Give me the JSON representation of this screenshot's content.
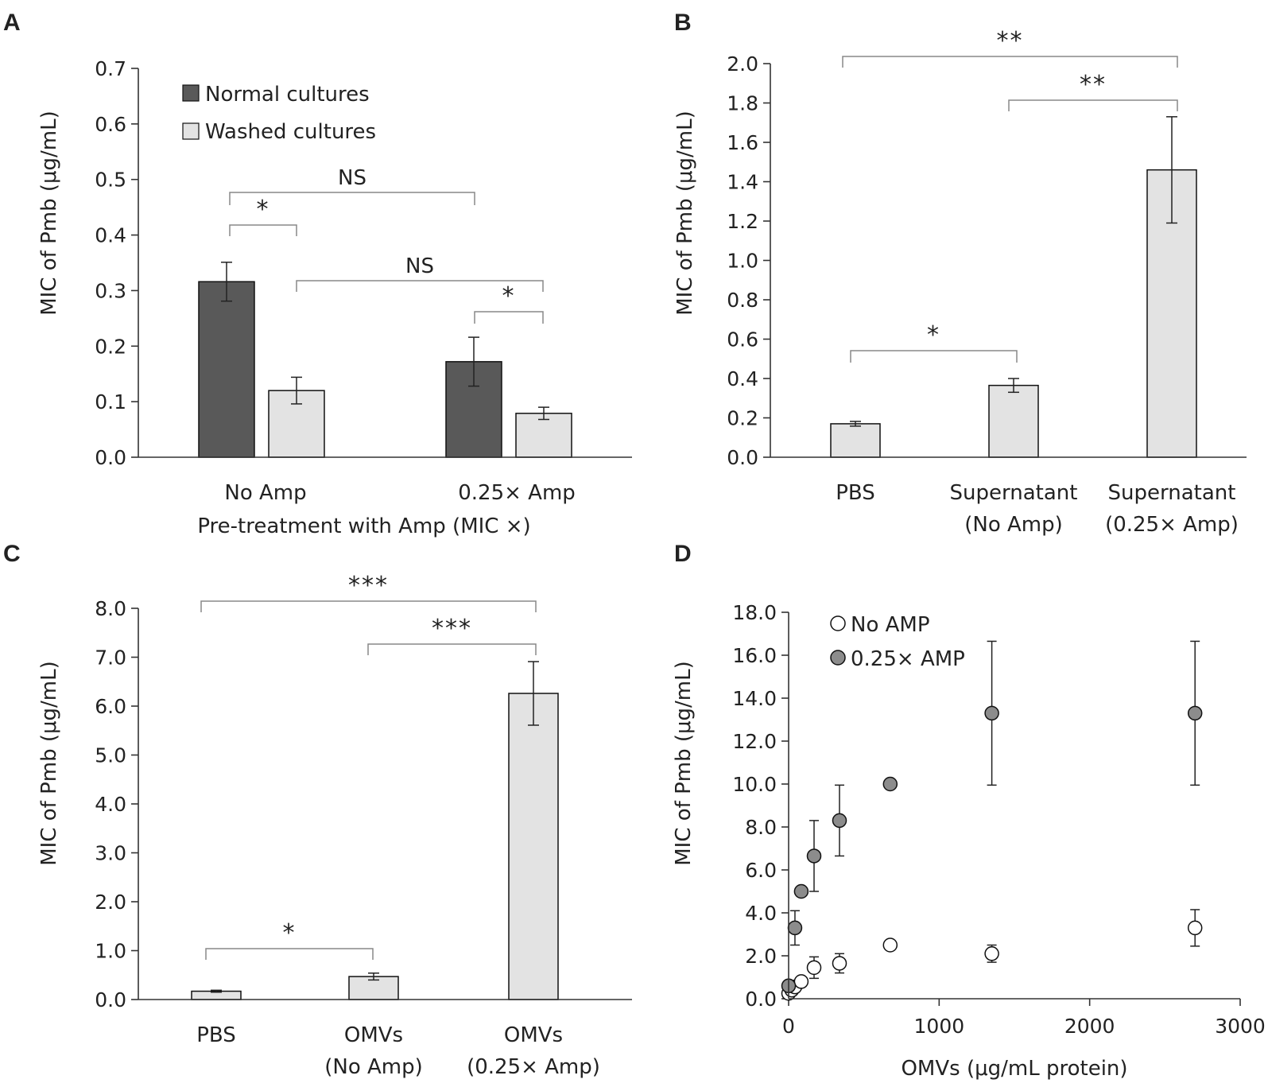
{
  "colors": {
    "dark_bar": "#595959",
    "light_bar": "#e3e3e3",
    "bar_edge": "#111111",
    "open_marker": "#ffffff",
    "filled_marker": "#8c8c8c"
  },
  "chart_data": [
    {
      "panel": "A",
      "type": "bar",
      "ylabel": "MIC of Pmb (μg/mL)",
      "xlabel": "Pre-treatment with Amp (MIC ×)",
      "ylim": [
        0,
        0.7
      ],
      "yticks": [
        "0.0",
        "0.1",
        "0.2",
        "0.3",
        "0.4",
        "0.5",
        "0.6",
        "0.7"
      ],
      "categories": [
        "No Amp",
        "0.25× Amp"
      ],
      "series": [
        {
          "name": "Normal cultures",
          "values": [
            0.316,
            0.172
          ],
          "errors": [
            0.035,
            0.044
          ]
        },
        {
          "name": "Washed cultures",
          "values": [
            0.12,
            0.079
          ],
          "errors": [
            0.024,
            0.011
          ]
        }
      ],
      "significance": [
        {
          "label": "NS",
          "between": [
            "No Amp / Normal cultures",
            "0.25× Amp / Normal cultures"
          ]
        },
        {
          "label": "*",
          "between": [
            "No Amp / Normal cultures",
            "No Amp / Washed cultures"
          ]
        },
        {
          "label": "NS",
          "between": [
            "No Amp / Washed cultures",
            "0.25× Amp / Washed cultures"
          ]
        },
        {
          "label": "*",
          "between": [
            "0.25× Amp / Normal cultures",
            "0.25× Amp / Washed cultures"
          ]
        }
      ]
    },
    {
      "panel": "B",
      "type": "bar",
      "ylabel": "MIC of Pmb (μg/mL)",
      "ylim": [
        0,
        2.0
      ],
      "yticks": [
        "0.0",
        "0.2",
        "0.4",
        "0.6",
        "0.8",
        "1.0",
        "1.2",
        "1.4",
        "1.6",
        "1.8",
        "2.0"
      ],
      "categories": [
        [
          "PBS"
        ],
        [
          "Supernatant",
          "(No Amp)"
        ],
        [
          "Supernatant",
          "(0.25× Amp)"
        ]
      ],
      "values": [
        0.17,
        0.365,
        1.46
      ],
      "errors": [
        0.012,
        0.035,
        0.27
      ],
      "significance": [
        {
          "label": "**",
          "between": [
            "PBS",
            "Supernatant (0.25× Amp)"
          ]
        },
        {
          "label": "**",
          "between": [
            "Supernatant (No Amp)",
            "Supernatant (0.25× Amp)"
          ]
        },
        {
          "label": "*",
          "between": [
            "PBS",
            "Supernatant (No Amp)"
          ]
        }
      ]
    },
    {
      "panel": "C",
      "type": "bar",
      "ylabel": "MIC of Pmb (μg/mL)",
      "ylim": [
        0,
        8.0
      ],
      "yticks": [
        "0.0",
        "1.0",
        "2.0",
        "3.0",
        "4.0",
        "5.0",
        "6.0",
        "7.0",
        "8.0"
      ],
      "categories": [
        [
          "PBS"
        ],
        [
          "OMVs",
          "(No Amp)"
        ],
        [
          "OMVs",
          "(0.25× Amp)"
        ]
      ],
      "values": [
        0.17,
        0.47,
        6.26
      ],
      "errors": [
        0.02,
        0.07,
        0.65
      ],
      "significance": [
        {
          "label": "***",
          "between": [
            "PBS",
            "OMVs (0.25× Amp)"
          ]
        },
        {
          "label": "***",
          "between": [
            "OMVs (No Amp)",
            "OMVs (0.25× Amp)"
          ]
        },
        {
          "label": "*",
          "between": [
            "PBS",
            "OMVs (No Amp)"
          ]
        }
      ]
    },
    {
      "panel": "D",
      "type": "scatter",
      "xlabel": "OMVs (μg/mL protein)",
      "ylabel": "MIC of Pmb (μg/mL)",
      "xlim": [
        0,
        3000
      ],
      "ylim": [
        0,
        18.0
      ],
      "xticks": [
        "0",
        "1000",
        "2000",
        "3000"
      ],
      "yticks": [
        "0.0",
        "2.0",
        "4.0",
        "6.0",
        "8.0",
        "10.0",
        "12.0",
        "14.0",
        "16.0",
        "18.0"
      ],
      "series": [
        {
          "name": "No AMP",
          "x": [
            0,
            21,
            42,
            84,
            169,
            338,
            675,
            1350,
            2700
          ],
          "y": [
            0.25,
            0.4,
            0.55,
            0.8,
            1.45,
            1.65,
            2.5,
            2.1,
            3.3
          ],
          "errors": [
            0,
            0,
            0,
            0,
            0.5,
            0.45,
            0,
            0.4,
            0.85
          ]
        },
        {
          "name": "0.25× AMP",
          "x": [
            0,
            42,
            84,
            169,
            338,
            675,
            1350,
            2700
          ],
          "y": [
            0.6,
            3.3,
            5.0,
            6.65,
            8.3,
            10.0,
            13.3,
            13.3
          ],
          "errors": [
            0,
            0.8,
            0,
            1.65,
            1.65,
            0,
            3.35,
            3.35
          ]
        }
      ]
    }
  ]
}
